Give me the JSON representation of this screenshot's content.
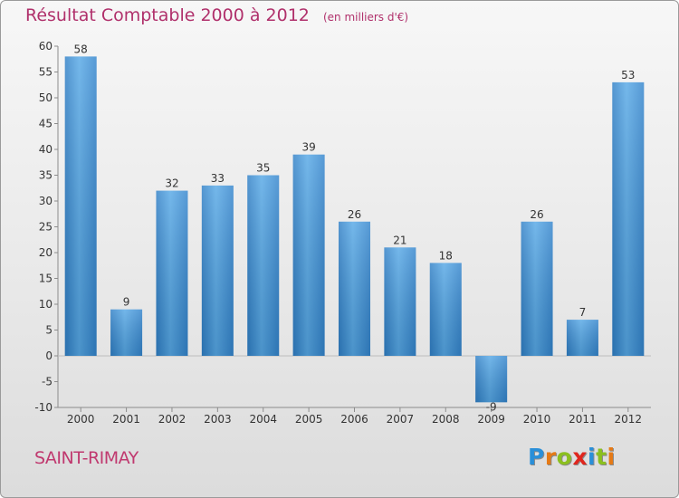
{
  "chart_data": {
    "type": "bar",
    "title": "Résultat Comptable 2000 à 2012",
    "unit_note": "(en milliers d'€)",
    "categories": [
      "2000",
      "2001",
      "2002",
      "2003",
      "2004",
      "2005",
      "2006",
      "2007",
      "2008",
      "2009",
      "2010",
      "2011",
      "2012"
    ],
    "values": [
      58,
      9,
      32,
      33,
      35,
      39,
      26,
      21,
      18,
      -9,
      26,
      7,
      53
    ],
    "ylim": [
      -10,
      60
    ],
    "yticks": [
      -10,
      -5,
      0,
      5,
      10,
      15,
      20,
      25,
      30,
      35,
      40,
      45,
      50,
      55,
      60
    ],
    "xlabel": "",
    "ylabel": "",
    "grid": false,
    "bar_color": "#3a8fd4"
  },
  "footer": {
    "town": "SAINT-RIMAY",
    "logo_text": "Proxiti"
  }
}
